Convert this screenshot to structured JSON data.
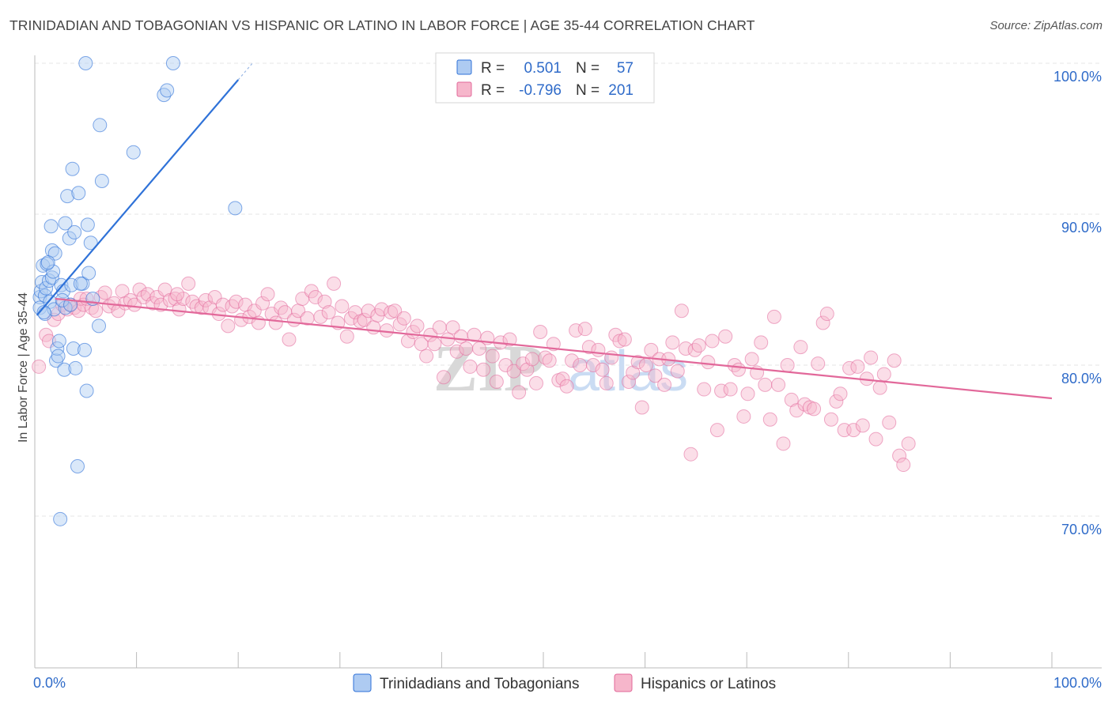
{
  "title": "TRINIDADIAN AND TOBAGONIAN VS HISPANIC OR LATINO IN LABOR FORCE | AGE 35-44 CORRELATION CHART",
  "source": "Source: ZipAtlas.com",
  "watermark": {
    "zip": "ZIP",
    "atlas": "atlas"
  },
  "colors": {
    "blue": "#2f72d8",
    "blue_fill": "#aecbf2",
    "blue_text": "#2f6bc9",
    "pink": "#e2689a",
    "pink_fill": "#f6b6cb",
    "grid": "#e6e6e6",
    "axis": "#bbbbbb"
  },
  "legend_box": {
    "rows": [
      {
        "r_label": "R =",
        "r_value": "0.501",
        "n_label": "N =",
        "n_value": "57"
      },
      {
        "r_label": "R =",
        "r_value": "-0.796",
        "n_label": "N =",
        "n_value": "201"
      }
    ]
  },
  "chart_data": {
    "type": "scatter",
    "ylabel": "In Labor Force | Age 35-44",
    "xlabel": "",
    "xlim": [
      0,
      100
    ],
    "ylim": [
      60,
      102
    ],
    "x_tick_labels": {
      "left": "0.0%",
      "right": "100.0%"
    },
    "y_ticks": [
      {
        "value": 100,
        "label": "100.0%"
      },
      {
        "value": 90,
        "label": "90.0%"
      },
      {
        "value": 80,
        "label": "80.0%"
      },
      {
        "value": 70,
        "label": "70.0%"
      }
    ],
    "legend": [
      "Trinidadians and Tobagonians",
      "Hispanics or Latinos"
    ],
    "series": [
      {
        "name": "Trinidadians and Tobagonians",
        "R": 0.501,
        "N": 57,
        "trend": {
          "x": [
            0.2,
            20.0
          ],
          "y": [
            83.3,
            98.9
          ]
        },
        "points": [
          [
            0.5,
            84.5
          ],
          [
            0.5,
            83.8
          ],
          [
            0.6,
            84.9
          ],
          [
            0.7,
            85.5
          ],
          [
            0.8,
            86.6
          ],
          [
            1.0,
            84.6
          ],
          [
            1.0,
            83.4
          ],
          [
            1.1,
            85.1
          ],
          [
            1.2,
            86.7
          ],
          [
            1.4,
            85.6
          ],
          [
            1.5,
            84.2
          ],
          [
            1.6,
            89.2
          ],
          [
            1.7,
            87.6
          ],
          [
            1.7,
            85.8
          ],
          [
            1.8,
            86.2
          ],
          [
            1.9,
            83.7
          ],
          [
            2.0,
            87.4
          ],
          [
            2.1,
            80.3
          ],
          [
            2.2,
            81.1
          ],
          [
            2.3,
            80.6
          ],
          [
            2.4,
            81.6
          ],
          [
            2.5,
            69.8
          ],
          [
            2.6,
            85.3
          ],
          [
            2.8,
            84.9
          ],
          [
            2.9,
            79.7
          ],
          [
            3.0,
            89.4
          ],
          [
            3.0,
            83.8
          ],
          [
            3.2,
            91.2
          ],
          [
            3.4,
            88.4
          ],
          [
            3.6,
            85.3
          ],
          [
            3.7,
            93.0
          ],
          [
            3.8,
            81.1
          ],
          [
            3.9,
            88.8
          ],
          [
            4.0,
            79.8
          ],
          [
            4.2,
            73.3
          ],
          [
            4.3,
            91.4
          ],
          [
            4.7,
            85.4
          ],
          [
            4.9,
            81.0
          ],
          [
            5.0,
            100.0
          ],
          [
            5.1,
            78.3
          ],
          [
            5.2,
            89.3
          ],
          [
            5.3,
            86.1
          ],
          [
            5.5,
            88.1
          ],
          [
            5.7,
            84.4
          ],
          [
            6.3,
            82.6
          ],
          [
            6.4,
            95.9
          ],
          [
            6.6,
            92.2
          ],
          [
            9.7,
            94.1
          ],
          [
            12.7,
            97.9
          ],
          [
            13.0,
            98.2
          ],
          [
            13.6,
            100.0
          ],
          [
            19.7,
            90.4
          ],
          [
            1.3,
            86.8
          ],
          [
            0.9,
            83.5
          ],
          [
            2.7,
            84.3
          ],
          [
            4.5,
            85.4
          ],
          [
            3.5,
            84.0
          ]
        ]
      },
      {
        "name": "Hispanics or Latinos",
        "R": -0.796,
        "N": 201,
        "trend": {
          "x": [
            2.0,
            100.0
          ],
          "y": [
            84.4,
            77.8
          ]
        },
        "points": [
          [
            0.4,
            79.9
          ],
          [
            1.1,
            82.0
          ],
          [
            1.4,
            81.6
          ],
          [
            1.9,
            83.0
          ],
          [
            2.3,
            83.4
          ],
          [
            2.7,
            84.0
          ],
          [
            3.2,
            83.7
          ],
          [
            3.5,
            84.0
          ],
          [
            3.9,
            83.8
          ],
          [
            4.3,
            83.6
          ],
          [
            4.5,
            84.4
          ],
          [
            4.8,
            84.0
          ],
          [
            5.1,
            84.4
          ],
          [
            5.6,
            83.8
          ],
          [
            6.0,
            83.6
          ],
          [
            6.5,
            84.5
          ],
          [
            6.9,
            84.8
          ],
          [
            7.3,
            83.9
          ],
          [
            7.8,
            84.1
          ],
          [
            8.2,
            83.6
          ],
          [
            8.6,
            84.9
          ],
          [
            8.9,
            84.1
          ],
          [
            9.4,
            84.3
          ],
          [
            9.8,
            84.0
          ],
          [
            10.3,
            85.0
          ],
          [
            10.7,
            84.5
          ],
          [
            11.1,
            84.7
          ],
          [
            11.6,
            84.1
          ],
          [
            12.0,
            84.5
          ],
          [
            12.4,
            84.0
          ],
          [
            12.8,
            85.0
          ],
          [
            13.3,
            84.3
          ],
          [
            13.8,
            84.4
          ],
          [
            14.2,
            83.7
          ],
          [
            14.6,
            84.4
          ],
          [
            15.1,
            85.4
          ],
          [
            15.5,
            84.2
          ],
          [
            15.9,
            83.9
          ],
          [
            16.4,
            83.8
          ],
          [
            16.8,
            84.3
          ],
          [
            17.2,
            83.8
          ],
          [
            17.7,
            84.5
          ],
          [
            18.1,
            83.4
          ],
          [
            18.5,
            84.0
          ],
          [
            19.0,
            82.6
          ],
          [
            19.4,
            83.9
          ],
          [
            19.8,
            84.2
          ],
          [
            20.3,
            83.0
          ],
          [
            20.7,
            84.0
          ],
          [
            21.1,
            83.2
          ],
          [
            21.6,
            83.6
          ],
          [
            22.0,
            82.8
          ],
          [
            22.4,
            84.1
          ],
          [
            22.9,
            84.7
          ],
          [
            23.3,
            83.4
          ],
          [
            23.7,
            82.8
          ],
          [
            24.2,
            83.8
          ],
          [
            24.6,
            83.5
          ],
          [
            25.0,
            81.7
          ],
          [
            25.5,
            83.0
          ],
          [
            25.9,
            83.6
          ],
          [
            26.3,
            84.4
          ],
          [
            26.8,
            83.1
          ],
          [
            27.2,
            84.9
          ],
          [
            27.6,
            84.5
          ],
          [
            28.1,
            83.2
          ],
          [
            28.5,
            84.2
          ],
          [
            28.9,
            83.5
          ],
          [
            29.4,
            85.4
          ],
          [
            29.8,
            82.8
          ],
          [
            30.2,
            83.9
          ],
          [
            30.7,
            81.9
          ],
          [
            31.1,
            83.1
          ],
          [
            31.5,
            83.5
          ],
          [
            32.0,
            82.9
          ],
          [
            32.4,
            83.0
          ],
          [
            32.8,
            83.6
          ],
          [
            33.3,
            82.5
          ],
          [
            33.7,
            83.3
          ],
          [
            34.1,
            83.7
          ],
          [
            34.6,
            82.3
          ],
          [
            35.0,
            83.5
          ],
          [
            35.4,
            83.6
          ],
          [
            35.9,
            82.7
          ],
          [
            36.3,
            83.1
          ],
          [
            36.7,
            81.6
          ],
          [
            37.2,
            82.2
          ],
          [
            37.6,
            82.6
          ],
          [
            38.0,
            81.4
          ],
          [
            38.5,
            80.6
          ],
          [
            38.9,
            82.0
          ],
          [
            39.3,
            81.4
          ],
          [
            39.8,
            82.5
          ],
          [
            40.2,
            79.2
          ],
          [
            40.6,
            81.7
          ],
          [
            41.1,
            82.5
          ],
          [
            41.5,
            80.9
          ],
          [
            41.9,
            81.9
          ],
          [
            42.4,
            81.1
          ],
          [
            42.8,
            79.9
          ],
          [
            43.2,
            82.0
          ],
          [
            43.7,
            81.1
          ],
          [
            44.1,
            79.7
          ],
          [
            44.5,
            81.8
          ],
          [
            45.0,
            80.6
          ],
          [
            45.4,
            78.9
          ],
          [
            45.8,
            81.5
          ],
          [
            46.3,
            80.0
          ],
          [
            46.7,
            81.7
          ],
          [
            47.1,
            79.6
          ],
          [
            47.6,
            78.2
          ],
          [
            48.0,
            80.1
          ],
          [
            48.4,
            79.7
          ],
          [
            48.9,
            80.4
          ],
          [
            49.3,
            78.8
          ],
          [
            49.7,
            82.2
          ],
          [
            50.2,
            80.5
          ],
          [
            50.6,
            80.3
          ],
          [
            51.0,
            81.4
          ],
          [
            51.5,
            79.0
          ],
          [
            51.9,
            79.1
          ],
          [
            52.3,
            78.6
          ],
          [
            52.8,
            80.3
          ],
          [
            53.2,
            82.3
          ],
          [
            53.6,
            80.0
          ],
          [
            54.1,
            82.4
          ],
          [
            54.5,
            81.2
          ],
          [
            54.9,
            80.0
          ],
          [
            55.4,
            81.0
          ],
          [
            55.8,
            79.7
          ],
          [
            56.2,
            78.8
          ],
          [
            56.7,
            80.5
          ],
          [
            57.1,
            82.0
          ],
          [
            57.5,
            81.6
          ],
          [
            58.0,
            81.7
          ],
          [
            58.4,
            78.9
          ],
          [
            58.8,
            79.5
          ],
          [
            59.3,
            80.2
          ],
          [
            59.7,
            77.2
          ],
          [
            60.1,
            80.0
          ],
          [
            60.6,
            81.0
          ],
          [
            61.0,
            79.3
          ],
          [
            61.4,
            80.4
          ],
          [
            61.9,
            78.7
          ],
          [
            62.3,
            80.4
          ],
          [
            62.7,
            81.5
          ],
          [
            63.2,
            79.6
          ],
          [
            63.6,
            83.6
          ],
          [
            64.0,
            81.1
          ],
          [
            64.5,
            74.1
          ],
          [
            64.9,
            81.0
          ],
          [
            65.3,
            81.3
          ],
          [
            65.8,
            78.4
          ],
          [
            66.2,
            80.2
          ],
          [
            66.6,
            81.6
          ],
          [
            67.1,
            75.7
          ],
          [
            67.5,
            78.3
          ],
          [
            67.9,
            81.9
          ],
          [
            68.4,
            78.4
          ],
          [
            68.8,
            80.0
          ],
          [
            69.2,
            79.7
          ],
          [
            69.7,
            76.6
          ],
          [
            70.1,
            78.1
          ],
          [
            70.5,
            80.4
          ],
          [
            71.0,
            79.5
          ],
          [
            71.4,
            81.5
          ],
          [
            71.8,
            78.7
          ],
          [
            72.3,
            76.4
          ],
          [
            72.7,
            83.2
          ],
          [
            73.1,
            78.7
          ],
          [
            73.6,
            74.8
          ],
          [
            74.0,
            80.0
          ],
          [
            74.4,
            77.7
          ],
          [
            74.9,
            77.0
          ],
          [
            75.3,
            81.2
          ],
          [
            75.7,
            77.4
          ],
          [
            76.2,
            77.2
          ],
          [
            76.6,
            77.1
          ],
          [
            77.0,
            80.1
          ],
          [
            77.5,
            82.8
          ],
          [
            77.9,
            83.4
          ],
          [
            78.3,
            76.4
          ],
          [
            78.8,
            77.6
          ],
          [
            79.2,
            78.1
          ],
          [
            79.6,
            75.7
          ],
          [
            80.1,
            79.8
          ],
          [
            80.5,
            75.7
          ],
          [
            80.9,
            79.9
          ],
          [
            81.4,
            76.0
          ],
          [
            81.8,
            79.1
          ],
          [
            82.2,
            80.5
          ],
          [
            82.7,
            75.1
          ],
          [
            83.1,
            78.5
          ],
          [
            83.5,
            79.4
          ],
          [
            84.0,
            76.2
          ],
          [
            84.5,
            80.3
          ],
          [
            85.0,
            74.0
          ],
          [
            85.4,
            73.4
          ],
          [
            85.9,
            74.8
          ],
          [
            14.0,
            84.7
          ]
        ]
      }
    ]
  }
}
